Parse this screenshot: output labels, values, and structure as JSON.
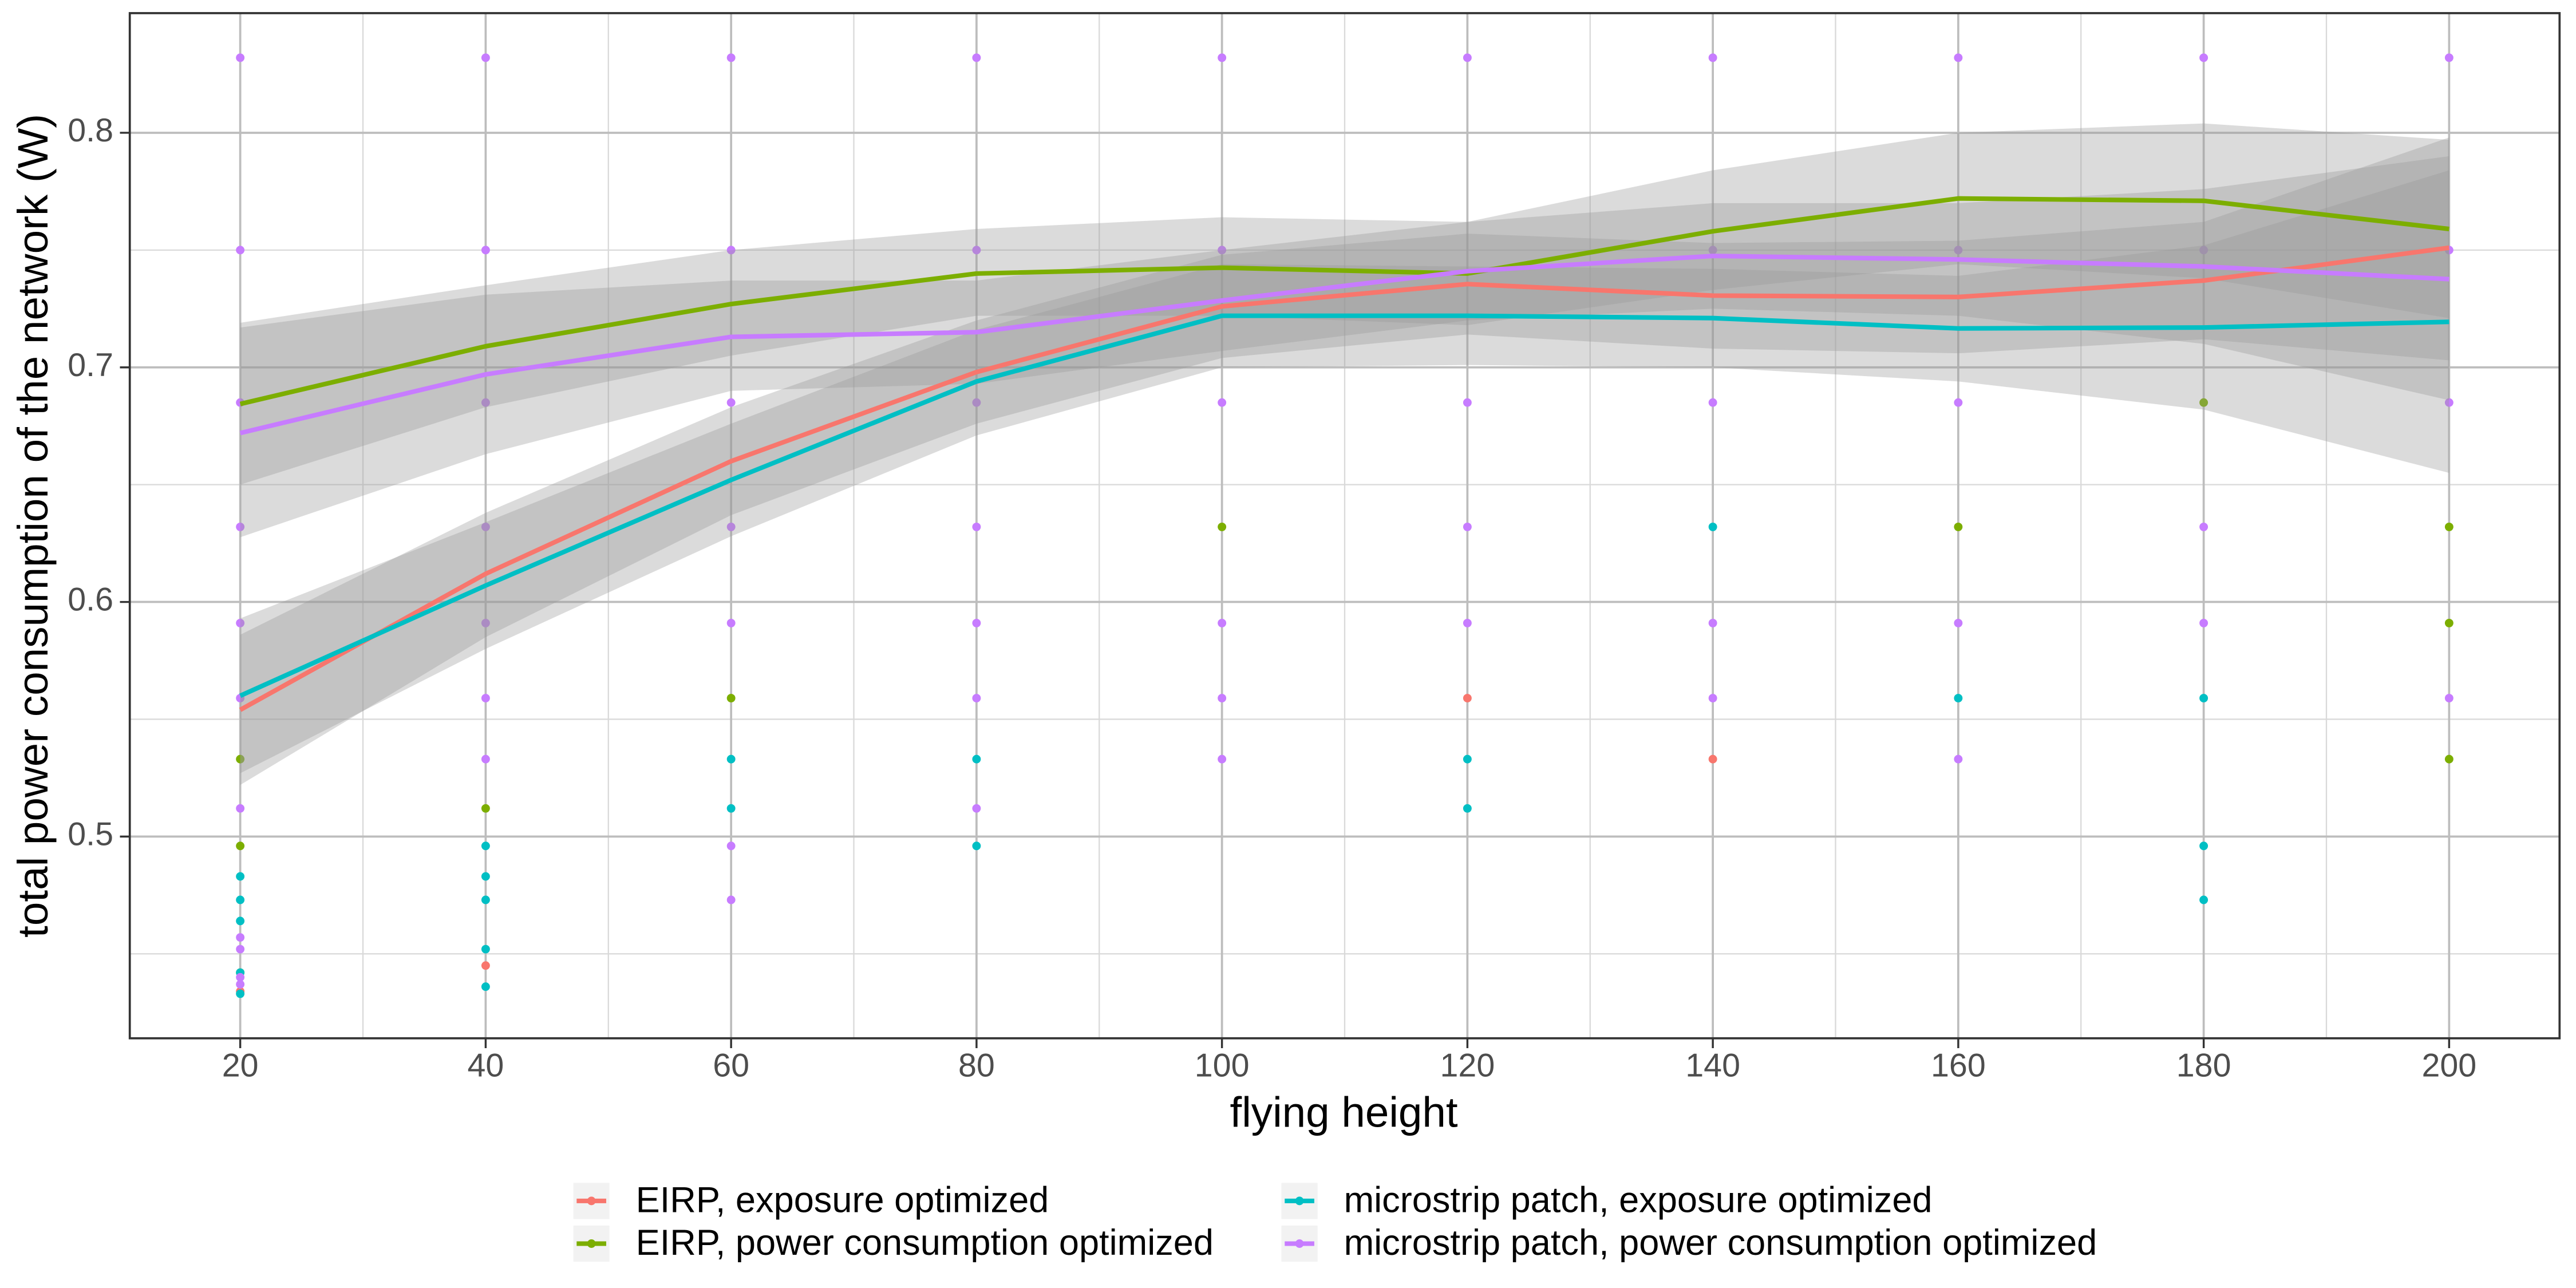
{
  "chart_data": {
    "type": "scatter",
    "x_label": "flying height",
    "y_label": "total power consumption of the network (W)",
    "xlim": [
      11,
      209
    ],
    "ylim": [
      0.414,
      0.851
    ],
    "xticks": [
      20,
      40,
      60,
      80,
      100,
      120,
      140,
      160,
      180,
      200
    ],
    "yticks": [
      0.5,
      0.6,
      0.7,
      0.8
    ],
    "x_minor_ticks": [
      30,
      50,
      70,
      90,
      110,
      130,
      150,
      170,
      190
    ],
    "y_minor_ticks": [
      0.45,
      0.55,
      0.65,
      0.75
    ],
    "grid": true,
    "legend_position": "bottom",
    "series": [
      {
        "name": "EIRP, exposure optimized",
        "color": "#F8766D",
        "x": [
          20,
          40,
          120,
          140
        ],
        "values": [
          0.434,
          0.445,
          0.559,
          0.533
        ],
        "fit_x": [
          20,
          40,
          60,
          80,
          100,
          120,
          140,
          160,
          180,
          200
        ],
        "fit": [
          0.554,
          0.612,
          0.66,
          0.698,
          0.726,
          0.7355,
          0.7306,
          0.73,
          0.737,
          0.751
        ],
        "fit_lower": [
          0.522,
          0.585,
          0.637,
          0.676,
          0.704,
          0.714,
          0.708,
          0.706,
          0.712,
          0.703
        ],
        "fit_upper": [
          0.586,
          0.638,
          0.683,
          0.72,
          0.748,
          0.757,
          0.753,
          0.754,
          0.762,
          0.798
        ]
      },
      {
        "name": "EIRP, power consumption optimized",
        "color": "#7CAE00",
        "x": [
          20,
          20,
          20,
          40,
          60,
          100,
          160,
          180,
          200,
          200,
          200
        ],
        "values": [
          0.533,
          0.496,
          0.442,
          0.512,
          0.559,
          0.632,
          0.632,
          0.685,
          0.632,
          0.591,
          0.533
        ],
        "fit_x": [
          20,
          40,
          60,
          80,
          100,
          120,
          140,
          160,
          180,
          200
        ],
        "fit": [
          0.6844,
          0.709,
          0.727,
          0.74,
          0.7425,
          0.74,
          0.758,
          0.772,
          0.771,
          0.759
        ],
        "fit_lower": [
          0.65,
          0.683,
          0.705,
          0.722,
          0.722,
          0.718,
          0.733,
          0.744,
          0.738,
          0.721
        ],
        "fit_upper": [
          0.719,
          0.735,
          0.75,
          0.759,
          0.764,
          0.762,
          0.784,
          0.8,
          0.804,
          0.797
        ]
      },
      {
        "name": "microstrip patch, exposure optimized",
        "color": "#00BFC4",
        "x": [
          20,
          20,
          20,
          20,
          20,
          40,
          40,
          40,
          40,
          40,
          60,
          60,
          80,
          80,
          120,
          120,
          140,
          160,
          180,
          180,
          180
        ],
        "values": [
          0.483,
          0.473,
          0.464,
          0.442,
          0.433,
          0.496,
          0.483,
          0.473,
          0.452,
          0.436,
          0.533,
          0.512,
          0.533,
          0.496,
          0.533,
          0.512,
          0.632,
          0.559,
          0.559,
          0.496,
          0.473
        ],
        "fit_x": [
          20,
          40,
          60,
          80,
          100,
          120,
          140,
          160,
          180,
          200
        ],
        "fit": [
          0.56,
          0.607,
          0.652,
          0.694,
          0.722,
          0.722,
          0.721,
          0.7166,
          0.717,
          0.7194
        ],
        "fit_lower": [
          0.527,
          0.58,
          0.628,
          0.671,
          0.7,
          0.701,
          0.7,
          0.694,
          0.682,
          0.655
        ],
        "fit_upper": [
          0.593,
          0.634,
          0.676,
          0.716,
          0.744,
          0.743,
          0.742,
          0.739,
          0.752,
          0.784
        ]
      },
      {
        "name": "microstrip patch, power consumption optimized",
        "color": "#C77CFF",
        "x": [
          20,
          20,
          20,
          20,
          20,
          20,
          20,
          20,
          20,
          20,
          20,
          40,
          40,
          40,
          40,
          40,
          40,
          40,
          60,
          60,
          60,
          60,
          60,
          60,
          60,
          80,
          80,
          80,
          80,
          80,
          80,
          80,
          100,
          100,
          100,
          100,
          100,
          100,
          120,
          120,
          120,
          120,
          140,
          140,
          140,
          140,
          140,
          160,
          160,
          160,
          160,
          160,
          180,
          180,
          180,
          180,
          200,
          200,
          200,
          200
        ],
        "values": [
          0.832,
          0.75,
          0.685,
          0.632,
          0.591,
          0.559,
          0.512,
          0.457,
          0.452,
          0.44,
          0.437,
          0.832,
          0.75,
          0.685,
          0.632,
          0.591,
          0.559,
          0.533,
          0.832,
          0.75,
          0.685,
          0.632,
          0.591,
          0.496,
          0.473,
          0.832,
          0.75,
          0.685,
          0.632,
          0.591,
          0.559,
          0.512,
          0.832,
          0.75,
          0.685,
          0.591,
          0.559,
          0.533,
          0.832,
          0.685,
          0.632,
          0.591,
          0.832,
          0.75,
          0.685,
          0.591,
          0.559,
          0.832,
          0.75,
          0.685,
          0.591,
          0.533,
          0.832,
          0.75,
          0.632,
          0.591,
          0.832,
          0.75,
          0.685,
          0.559
        ],
        "fit_x": [
          20,
          40,
          60,
          80,
          100,
          120,
          140,
          160,
          180,
          200
        ],
        "fit": [
          0.672,
          0.697,
          0.713,
          0.715,
          0.7285,
          0.741,
          0.7475,
          0.746,
          0.743,
          0.7376
        ],
        "fit_lower": [
          0.6276,
          0.663,
          0.69,
          0.693,
          0.707,
          0.72,
          0.725,
          0.722,
          0.71,
          0.686
        ],
        "fit_upper": [
          0.717,
          0.731,
          0.737,
          0.737,
          0.75,
          0.762,
          0.77,
          0.77,
          0.776,
          0.79
        ]
      }
    ]
  }
}
